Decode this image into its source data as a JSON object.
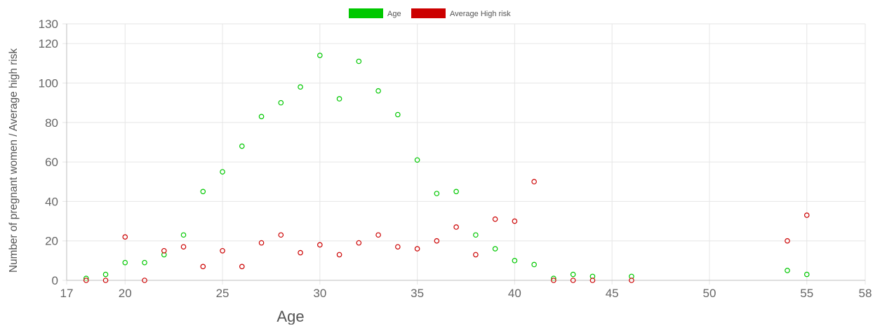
{
  "chart_data": {
    "type": "scatter",
    "xlabel": "Age",
    "ylabel": "Number of pregnant women / Average high risk",
    "xlim": [
      17,
      58
    ],
    "ylim": [
      0,
      130
    ],
    "x_ticks": [
      17,
      20,
      25,
      30,
      35,
      40,
      45,
      50,
      55,
      58
    ],
    "y_ticks": [
      0,
      20,
      40,
      60,
      80,
      100,
      120,
      130
    ],
    "grid": true,
    "legend_position": "top-center",
    "series": [
      {
        "name": "Age",
        "color": "#00c800",
        "points": [
          {
            "x": 18,
            "y": 1
          },
          {
            "x": 19,
            "y": 3
          },
          {
            "x": 20,
            "y": 9
          },
          {
            "x": 21,
            "y": 9
          },
          {
            "x": 22,
            "y": 13
          },
          {
            "x": 23,
            "y": 23
          },
          {
            "x": 24,
            "y": 45
          },
          {
            "x": 25,
            "y": 55
          },
          {
            "x": 26,
            "y": 68
          },
          {
            "x": 27,
            "y": 83
          },
          {
            "x": 28,
            "y": 90
          },
          {
            "x": 29,
            "y": 98
          },
          {
            "x": 30,
            "y": 114
          },
          {
            "x": 31,
            "y": 92
          },
          {
            "x": 32,
            "y": 111
          },
          {
            "x": 33,
            "y": 96
          },
          {
            "x": 34,
            "y": 84
          },
          {
            "x": 35,
            "y": 61
          },
          {
            "x": 36,
            "y": 44
          },
          {
            "x": 37,
            "y": 45
          },
          {
            "x": 38,
            "y": 23
          },
          {
            "x": 39,
            "y": 16
          },
          {
            "x": 40,
            "y": 10
          },
          {
            "x": 41,
            "y": 8
          },
          {
            "x": 42,
            "y": 1
          },
          {
            "x": 43,
            "y": 3
          },
          {
            "x": 44,
            "y": 2
          },
          {
            "x": 46,
            "y": 2
          },
          {
            "x": 54,
            "y": 5
          },
          {
            "x": 55,
            "y": 3
          }
        ]
      },
      {
        "name": "Average High risk",
        "color": "#cc0000",
        "points": [
          {
            "x": 18,
            "y": 0
          },
          {
            "x": 19,
            "y": 0
          },
          {
            "x": 20,
            "y": 22
          },
          {
            "x": 21,
            "y": 0
          },
          {
            "x": 22,
            "y": 15
          },
          {
            "x": 23,
            "y": 17
          },
          {
            "x": 24,
            "y": 7
          },
          {
            "x": 25,
            "y": 15
          },
          {
            "x": 26,
            "y": 7
          },
          {
            "x": 27,
            "y": 19
          },
          {
            "x": 28,
            "y": 23
          },
          {
            "x": 29,
            "y": 14
          },
          {
            "x": 30,
            "y": 18
          },
          {
            "x": 31,
            "y": 13
          },
          {
            "x": 32,
            "y": 19
          },
          {
            "x": 33,
            "y": 23
          },
          {
            "x": 34,
            "y": 17
          },
          {
            "x": 35,
            "y": 16
          },
          {
            "x": 36,
            "y": 20
          },
          {
            "x": 37,
            "y": 27
          },
          {
            "x": 38,
            "y": 13
          },
          {
            "x": 39,
            "y": 31
          },
          {
            "x": 40,
            "y": 30
          },
          {
            "x": 41,
            "y": 50
          },
          {
            "x": 42,
            "y": 0
          },
          {
            "x": 43,
            "y": 0
          },
          {
            "x": 44,
            "y": 0
          },
          {
            "x": 46,
            "y": 0
          },
          {
            "x": 54,
            "y": 20
          },
          {
            "x": 55,
            "y": 33
          }
        ]
      }
    ]
  }
}
